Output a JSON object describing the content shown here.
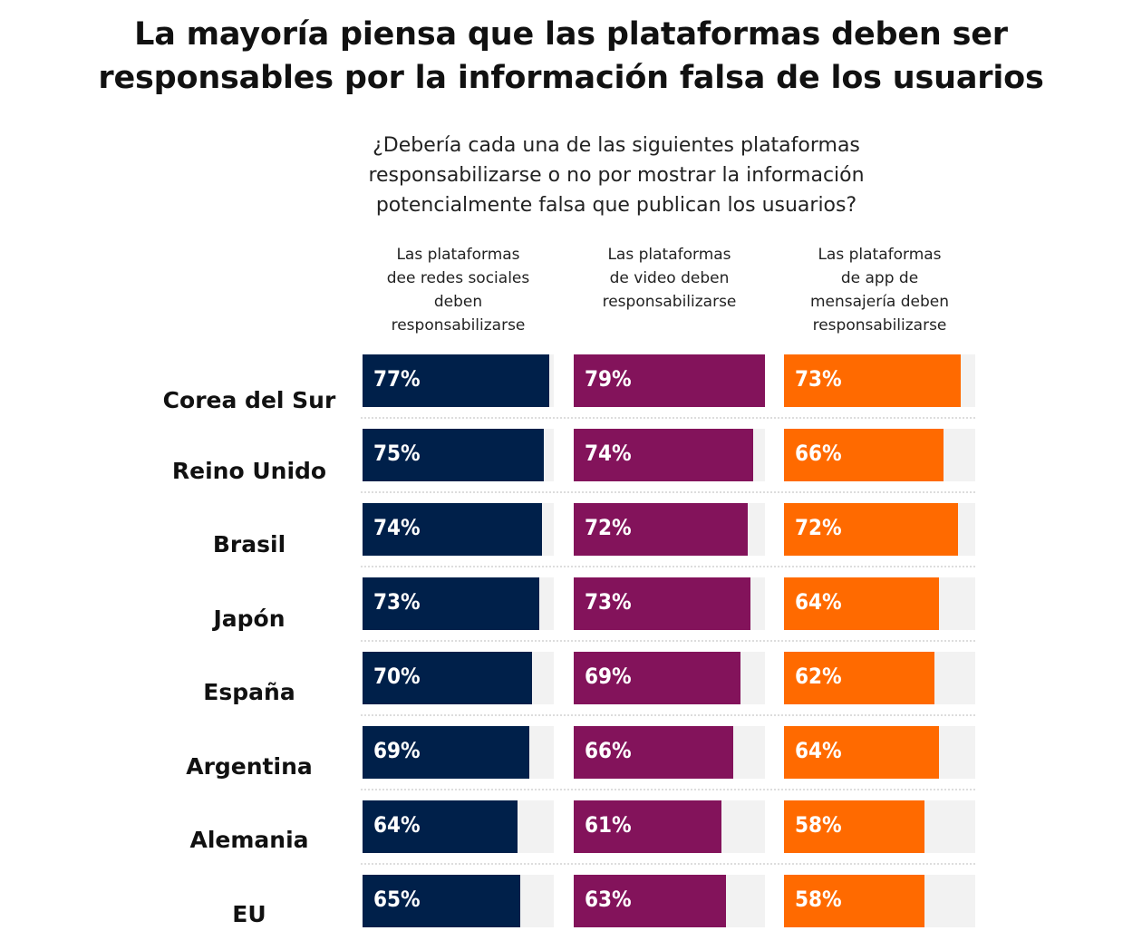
{
  "chart_data": {
    "type": "bar",
    "orientation": "horizontal",
    "title": "La mayoría piensa que las plataformas deben ser responsables por la información falsa de los usuarios",
    "subtitle": "¿Debería cada una de las siguientes plataformas responsabilizarse o no por mostrar la información potencialmente falsa que publican los usuarios?",
    "categories": [
      "Corea del Sur",
      "Reino Unido",
      "Brasil",
      "Japón",
      "España",
      "Argentina",
      "Alemania",
      "EU"
    ],
    "series": [
      {
        "name": "Las plataformas dee redes sociales deben responsabilizarse",
        "header_lines": [
          "Las plataformas",
          "dee redes sociales",
          "deben",
          "responsabilizarse"
        ],
        "color": "#00204a",
        "values": [
          77,
          75,
          74,
          73,
          70,
          69,
          64,
          65
        ],
        "labels": [
          "77%",
          "75%",
          "74%",
          "73%",
          "70%",
          "69%",
          "64%",
          "65%"
        ]
      },
      {
        "name": "Las plataformas de video deben responsabilizarse",
        "header_lines": [
          "Las plataformas",
          "de video deben",
          "responsabilizarse"
        ],
        "color": "#83135b",
        "values": [
          79,
          74,
          72,
          73,
          69,
          66,
          61,
          63
        ],
        "labels": [
          "79%",
          "74%",
          "72%",
          "73%",
          "69%",
          "66%",
          "61%",
          "63%"
        ]
      },
      {
        "name": "Las plataformas de app de mensajería deben responsabilizarse",
        "header_lines": [
          "Las plataformas",
          "de app de",
          "mensajería deben",
          "responsabilizarse"
        ],
        "color": "#ff6a00",
        "values": [
          73,
          66,
          72,
          64,
          62,
          64,
          58,
          58
        ],
        "labels": [
          "73%",
          "66%",
          "72%",
          "64%",
          "62%",
          "64%",
          "58%",
          "58%"
        ]
      }
    ],
    "xlim": [
      0,
      79
    ],
    "unit": "%",
    "track_color": "#f2f2f2",
    "grid": false,
    "legend": "column-headers"
  }
}
